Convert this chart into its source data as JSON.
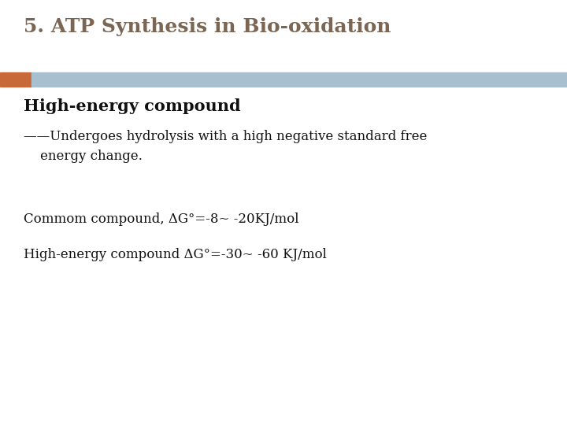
{
  "title": "5. ATP Synthesis in Bio-oxidation",
  "title_color": "#7a6652",
  "title_fontsize": 18,
  "bar_orange_color": "#c8693a",
  "bar_blue_color": "#a8bfcf",
  "heading1": "High-energy compound",
  "heading1_color": "#111111",
  "heading1_fontsize": 15,
  "line2": "——Undergoes hydrolysis with a high negative standard free",
  "line3": "    energy change.",
  "body_color": "#111111",
  "body_fontsize": 12,
  "line_common": "Commom compound, ΔG°=-8~ -20KJ/mol",
  "line_high": "High-energy compound ΔG°=-30~ -60 KJ/mol",
  "common_fontsize": 12,
  "high_fontsize": 12,
  "background_color": "#ffffff"
}
